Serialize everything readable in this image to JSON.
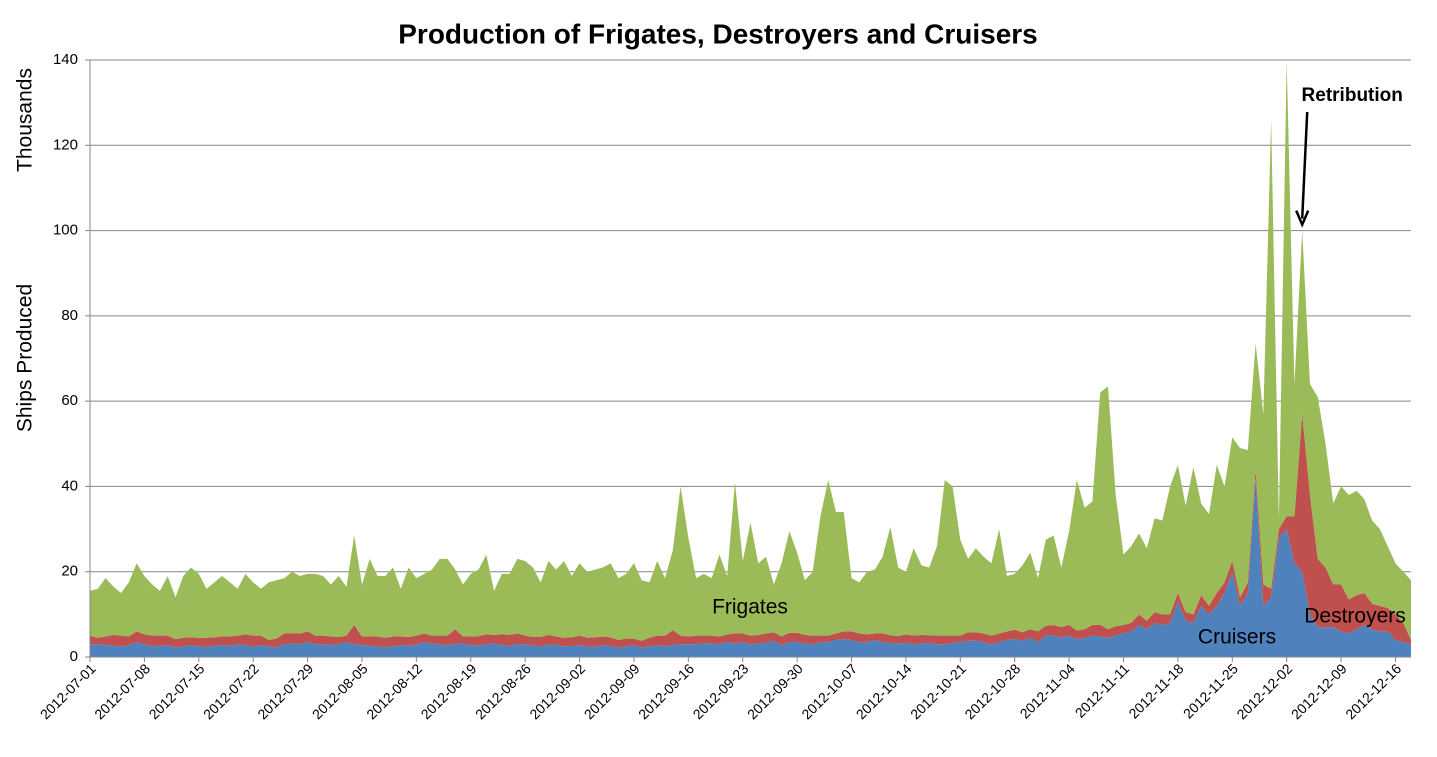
{
  "chart_data": {
    "type": "stacked_area",
    "title": "Production of Frigates, Destroyers and Cruisers",
    "y_label": "Ships Produced",
    "y_unit": "Thousands",
    "annotations": [
      {
        "text": "Retribution",
        "category": "2012-12-04"
      }
    ],
    "ylim": [
      0,
      140
    ],
    "yticks": [
      0,
      20,
      40,
      60,
      80,
      100,
      120,
      140
    ],
    "grid": true,
    "categories": [
      "2012-07-01",
      null,
      null,
      null,
      null,
      null,
      null,
      "2012-07-08",
      null,
      null,
      null,
      null,
      null,
      null,
      "2012-07-15",
      null,
      null,
      null,
      null,
      null,
      null,
      "2012-07-22",
      null,
      null,
      null,
      null,
      null,
      null,
      "2012-07-29",
      null,
      null,
      null,
      null,
      null,
      null,
      "2012-08-05",
      null,
      null,
      null,
      null,
      null,
      null,
      "2012-08-12",
      null,
      null,
      null,
      null,
      null,
      null,
      "2012-08-19",
      null,
      null,
      null,
      null,
      null,
      null,
      "2012-08-26",
      null,
      null,
      null,
      null,
      null,
      null,
      "2012-09-02",
      null,
      null,
      null,
      null,
      null,
      null,
      "2012-09-09",
      null,
      null,
      null,
      null,
      null,
      null,
      "2012-09-16",
      null,
      null,
      null,
      null,
      null,
      null,
      "2012-09-23",
      null,
      null,
      null,
      null,
      null,
      null,
      "2012-09-30",
      null,
      null,
      null,
      null,
      null,
      null,
      "2012-10-07",
      null,
      null,
      null,
      null,
      null,
      null,
      "2012-10-14",
      null,
      null,
      null,
      null,
      null,
      null,
      "2012-10-21",
      null,
      null,
      null,
      null,
      null,
      null,
      "2012-10-28",
      null,
      null,
      null,
      null,
      null,
      null,
      "2012-11-04",
      null,
      null,
      null,
      null,
      null,
      null,
      "2012-11-11",
      null,
      null,
      null,
      null,
      null,
      null,
      "2012-11-18",
      null,
      null,
      null,
      null,
      null,
      null,
      "2012-11-25",
      null,
      null,
      null,
      null,
      null,
      null,
      "2012-12-02",
      null,
      null,
      null,
      null,
      null,
      null,
      "2012-12-09",
      null,
      null,
      null,
      null,
      null,
      null,
      "2012-12-16",
      null,
      null
    ],
    "series": [
      {
        "name": "Cruisers",
        "color": "#4f81bd",
        "values": [
          3,
          3,
          2.8,
          2.7,
          2.5,
          2.8,
          3.5,
          3,
          2.5,
          2.6,
          2.8,
          2.2,
          2.5,
          2.8,
          2.5,
          2.4,
          2.6,
          2.8,
          2.6,
          3,
          2.8,
          2.5,
          2.8,
          2.5,
          2.3,
          3,
          3.2,
          3,
          3.5,
          3,
          3,
          2.8,
          3,
          3.5,
          3,
          2.8,
          2.7,
          2.5,
          2.3,
          2.5,
          2.8,
          2.6,
          3,
          3.5,
          3.2,
          3,
          2.8,
          3,
          3.2,
          2.8,
          2.7,
          3,
          3.2,
          2.8,
          2.6,
          3,
          3,
          2.7,
          2.5,
          3,
          2.8,
          2.5,
          2.6,
          2.8,
          2.5,
          2.4,
          2.8,
          2.6,
          2.2,
          2.5,
          2.8,
          2.2,
          2.5,
          2.8,
          2.5,
          2.8,
          3,
          3,
          3,
          3.2,
          3.2,
          3,
          3.5,
          3.2,
          3.5,
          3,
          3.2,
          3.3,
          3.8,
          2.8,
          3.5,
          3.5,
          3.2,
          3,
          3.5,
          3.5,
          4,
          4.2,
          4,
          3.5,
          3.5,
          4,
          3.5,
          3.3,
          3.2,
          3.3,
          3,
          3.2,
          3.3,
          3,
          3,
          3.3,
          3.5,
          3.8,
          3.8,
          3.5,
          3,
          3.5,
          4,
          4.2,
          3.8,
          4.5,
          3.5,
          5,
          5,
          4.5,
          5,
          4.2,
          4.5,
          5,
          4.8,
          4.5,
          5,
          5.5,
          6,
          7.5,
          6.5,
          8,
          7.5,
          8,
          13,
          8.5,
          8,
          12,
          10,
          12,
          15,
          20,
          12,
          15,
          42,
          12,
          14,
          28,
          30,
          22,
          20,
          10,
          7,
          7,
          7,
          6,
          5.5,
          6.5,
          7.5,
          6.5,
          6,
          6,
          4,
          3.5,
          3
        ]
      },
      {
        "name": "Destroyers",
        "color": "#c0504d",
        "values": [
          2,
          1.5,
          2,
          2.5,
          2.5,
          2,
          2.5,
          2.3,
          2.5,
          2.4,
          2.2,
          2,
          2,
          1.8,
          2,
          2.1,
          2,
          2,
          2.2,
          2,
          2.5,
          2.5,
          2.2,
          1.5,
          2,
          2.5,
          2.3,
          2.5,
          2.5,
          2,
          2,
          2,
          1.7,
          1.5,
          4.5,
          2,
          2.2,
          2.3,
          2.2,
          2.3,
          2,
          2.1,
          2,
          2,
          1.8,
          2,
          2.2,
          3.5,
          1.6,
          2,
          2.2,
          2.3,
          2,
          2.5,
          2.6,
          2.5,
          2,
          2,
          2.2,
          2.2,
          2,
          2,
          2,
          2.2,
          2,
          2.2,
          2,
          2,
          1.8,
          1.8,
          1.5,
          1.6,
          2,
          2.2,
          2.5,
          3.5,
          2,
          1.8,
          2,
          1.8,
          1.8,
          1.8,
          1.8,
          2.3,
          2,
          2,
          2,
          2.2,
          2,
          2,
          2.2,
          2.2,
          2,
          2,
          1.5,
          1.5,
          1.5,
          1.8,
          2,
          2,
          1.8,
          1.5,
          2,
          1.8,
          1.7,
          2,
          2,
          2,
          1.8,
          2,
          2,
          1.7,
          1.5,
          2,
          2,
          2,
          2,
          2,
          2,
          2.2,
          2,
          2,
          2.5,
          2.3,
          2.5,
          2.5,
          2.5,
          2,
          2,
          2.5,
          2.8,
          2,
          2.2,
          2,
          2,
          2.5,
          2,
          2.5,
          2.5,
          2,
          2,
          2,
          2,
          2.5,
          2,
          3,
          2.5,
          2.5,
          2,
          2.5,
          2,
          5,
          2,
          2,
          3,
          11,
          37,
          28,
          16,
          14,
          10,
          11,
          8,
          8,
          7.5,
          6,
          6,
          5.5,
          6,
          4.5,
          1
        ]
      },
      {
        "name": "Frigates",
        "color": "#9bbb59",
        "values": [
          10.5,
          11.5,
          13.7,
          11.3,
          10,
          12.7,
          16,
          13.7,
          12,
          10.5,
          14,
          9.8,
          14.5,
          16.4,
          15,
          11.5,
          12.9,
          14.2,
          12.7,
          11,
          14.2,
          12.5,
          11,
          13.5,
          13.7,
          13,
          14.5,
          13.5,
          13.5,
          14.5,
          14,
          12.2,
          14.3,
          11.5,
          21,
          12.2,
          18.1,
          14.2,
          14.5,
          16.2,
          11.2,
          16.3,
          13.5,
          14,
          15.5,
          18,
          18,
          14,
          12.2,
          14.7,
          15.6,
          18.7,
          10.3,
          14.2,
          14.3,
          17.5,
          17.5,
          16.3,
          12.8,
          17.3,
          15.7,
          18,
          14.4,
          17,
          15.5,
          15.9,
          16.2,
          17.4,
          14.5,
          15.2,
          17.7,
          14.2,
          13,
          17.5,
          13.5,
          18.7,
          35,
          23.2,
          13.5,
          14.5,
          13.5,
          19.2,
          13.7,
          35.5,
          17,
          26.5,
          16.8,
          18,
          11.2,
          17.2,
          23.8,
          18.8,
          12.8,
          15,
          28,
          36.5,
          28.5,
          28,
          12.5,
          12,
          14.7,
          15,
          18,
          25.4,
          16.1,
          14.7,
          20.5,
          16.3,
          15.9,
          21,
          36.5,
          35,
          22.5,
          17.2,
          19.7,
          18,
          17,
          24.5,
          13,
          13.1,
          15.7,
          18,
          12.5,
          20.2,
          21,
          14,
          22,
          35.3,
          28.5,
          29,
          54.4,
          57,
          30.8,
          16.5,
          18,
          19,
          17,
          22,
          22,
          30,
          30,
          25,
          34.5,
          21.5,
          21.5,
          30,
          22.5,
          29,
          35,
          31,
          29.5,
          40,
          110,
          2,
          107,
          31,
          43,
          26,
          38,
          29,
          19,
          23,
          24.5,
          24.5,
          22,
          19.5,
          18,
          14.5,
          12,
          12,
          14
        ]
      }
    ]
  }
}
